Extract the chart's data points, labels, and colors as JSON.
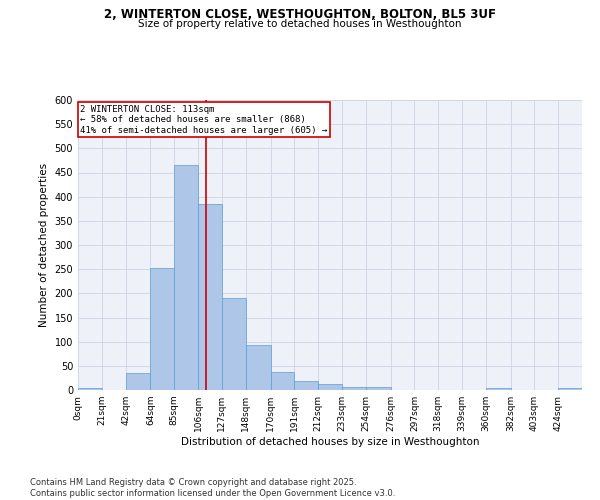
{
  "title_line1": "2, WINTERTON CLOSE, WESTHOUGHTON, BOLTON, BL5 3UF",
  "title_line2": "Size of property relative to detached houses in Westhoughton",
  "xlabel": "Distribution of detached houses by size in Westhoughton",
  "ylabel": "Number of detached properties",
  "bin_labels": [
    "0sqm",
    "21sqm",
    "42sqm",
    "64sqm",
    "85sqm",
    "106sqm",
    "127sqm",
    "148sqm",
    "170sqm",
    "191sqm",
    "212sqm",
    "233sqm",
    "254sqm",
    "276sqm",
    "297sqm",
    "318sqm",
    "339sqm",
    "360sqm",
    "382sqm",
    "403sqm",
    "424sqm"
  ],
  "bar_values": [
    4,
    0,
    36,
    253,
    465,
    385,
    190,
    93,
    37,
    18,
    12,
    6,
    7,
    0,
    0,
    0,
    0,
    4,
    0,
    0,
    4
  ],
  "bar_color": "#aec6e8",
  "bar_edge_color": "#5a9fd4",
  "grid_color": "#d0d8e8",
  "background_color": "#eef2f8",
  "vline_x": 113,
  "vline_color": "#cc0000",
  "annotation_text": "2 WINTERTON CLOSE: 113sqm\n← 58% of detached houses are smaller (868)\n41% of semi-detached houses are larger (605) →",
  "annotation_box_color": "#cc0000",
  "ylim": [
    0,
    600
  ],
  "yticks": [
    0,
    50,
    100,
    150,
    200,
    250,
    300,
    350,
    400,
    450,
    500,
    550,
    600
  ],
  "footer_text": "Contains HM Land Registry data © Crown copyright and database right 2025.\nContains public sector information licensed under the Open Government Licence v3.0.",
  "bin_edges": [
    0,
    21,
    42,
    64,
    85,
    106,
    127,
    148,
    170,
    191,
    212,
    233,
    254,
    276,
    297,
    318,
    339,
    360,
    382,
    403,
    424,
    445
  ],
  "n_bins": 21
}
